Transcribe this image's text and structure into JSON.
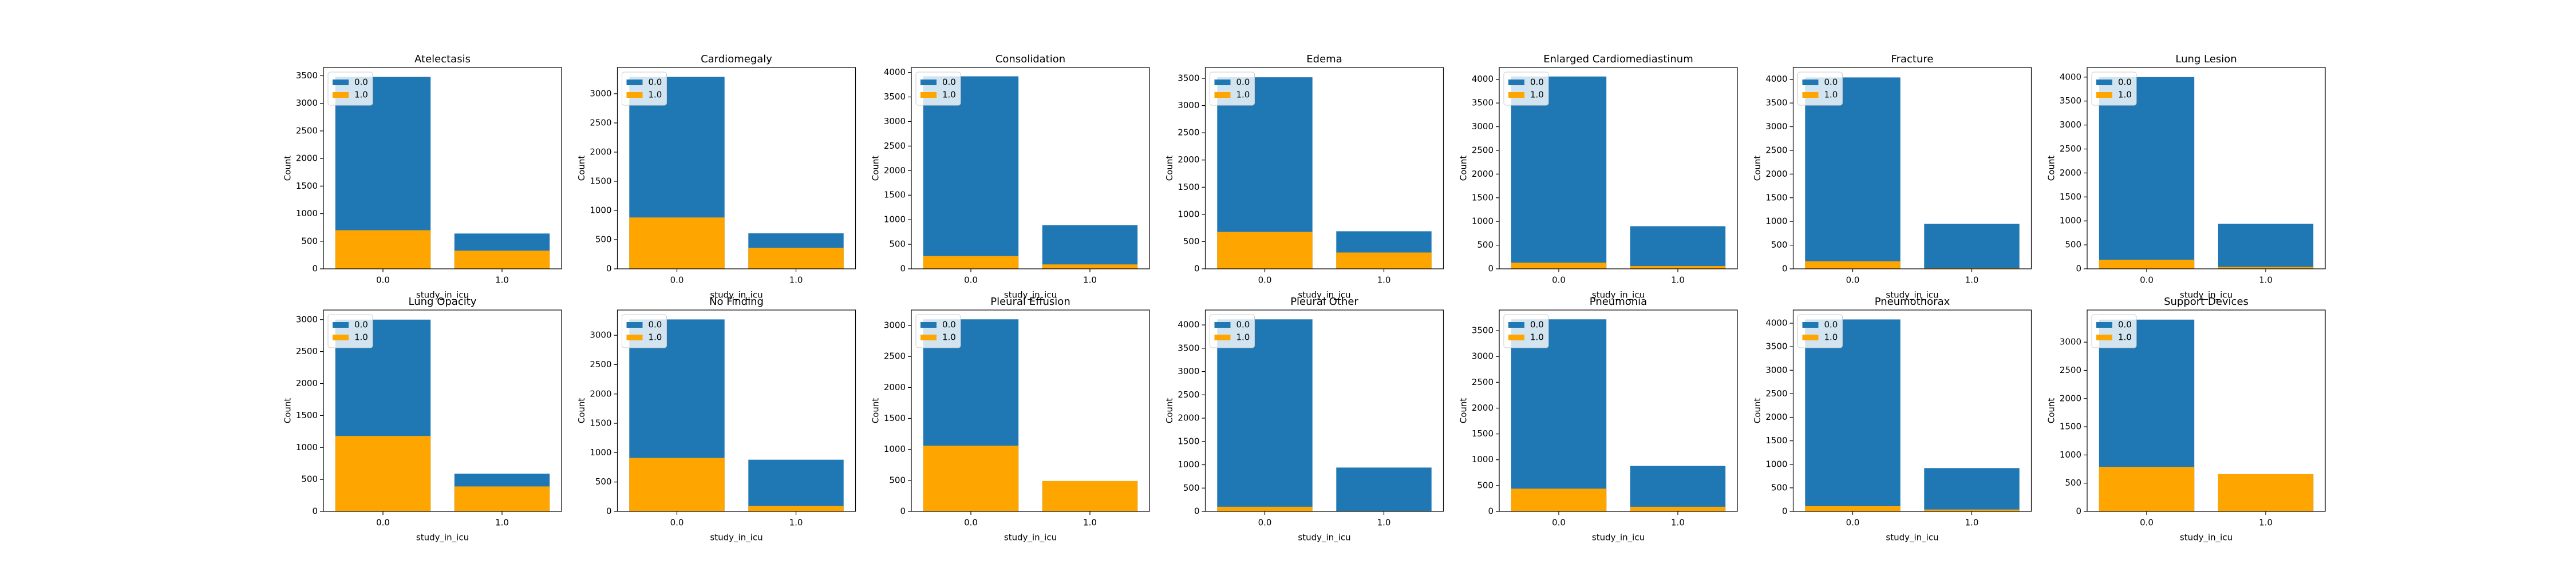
{
  "chart_data": [
    {
      "type": "bar",
      "title": "Atelectasis",
      "xlabel": "study_in_icu",
      "ylabel": "Count",
      "categories": [
        "0.0",
        "1.0"
      ],
      "series": [
        {
          "name": "0.0",
          "color": "#1f77b4",
          "values": [
            3480,
            640
          ]
        },
        {
          "name": "1.0",
          "color": "#ffa500",
          "values": [
            700,
            330
          ]
        }
      ],
      "ylim": [
        0,
        3650
      ],
      "yticks": [
        0,
        500,
        1000,
        1500,
        2000,
        2500,
        3000,
        3500
      ],
      "legend": "upper left"
    },
    {
      "type": "bar",
      "title": "Cardiomegaly",
      "xlabel": "study_in_icu",
      "ylabel": "Count",
      "categories": [
        "0.0",
        "1.0"
      ],
      "series": [
        {
          "name": "0.0",
          "color": "#1f77b4",
          "values": [
            3290,
            610
          ]
        },
        {
          "name": "1.0",
          "color": "#ffa500",
          "values": [
            880,
            360
          ]
        }
      ],
      "ylim": [
        0,
        3450
      ],
      "yticks": [
        0,
        500,
        1000,
        1500,
        2000,
        2500,
        3000
      ],
      "legend": "upper left"
    },
    {
      "type": "bar",
      "title": "Consolidation",
      "xlabel": "study_in_icu",
      "ylabel": "Count",
      "categories": [
        "0.0",
        "1.0"
      ],
      "series": [
        {
          "name": "0.0",
          "color": "#1f77b4",
          "values": [
            3920,
            890
          ]
        },
        {
          "name": "1.0",
          "color": "#ffa500",
          "values": [
            260,
            90
          ]
        }
      ],
      "ylim": [
        0,
        4100
      ],
      "yticks": [
        0,
        500,
        1000,
        1500,
        2000,
        2500,
        3000,
        3500,
        4000
      ],
      "legend": "upper left"
    },
    {
      "type": "bar",
      "title": "Edema",
      "xlabel": "study_in_icu",
      "ylabel": "Count",
      "categories": [
        "0.0",
        "1.0"
      ],
      "series": [
        {
          "name": "0.0",
          "color": "#1f77b4",
          "values": [
            3520,
            690
          ]
        },
        {
          "name": "1.0",
          "color": "#ffa500",
          "values": [
            680,
            300
          ]
        }
      ],
      "ylim": [
        0,
        3700
      ],
      "yticks": [
        0,
        500,
        1000,
        1500,
        2000,
        2500,
        3000,
        3500
      ],
      "legend": "upper left"
    },
    {
      "type": "bar",
      "title": "Enlarged Cardiomediastinum",
      "xlabel": "study_in_icu",
      "ylabel": "Count",
      "categories": [
        "0.0",
        "1.0"
      ],
      "series": [
        {
          "name": "0.0",
          "color": "#1f77b4",
          "values": [
            4060,
            900
          ]
        },
        {
          "name": "1.0",
          "color": "#ffa500",
          "values": [
            130,
            60
          ]
        }
      ],
      "ylim": [
        0,
        4250
      ],
      "yticks": [
        0,
        500,
        1000,
        1500,
        2000,
        2500,
        3000,
        3500,
        4000
      ],
      "legend": "upper left"
    },
    {
      "type": "bar",
      "title": "Fracture",
      "xlabel": "study_in_icu",
      "ylabel": "Count",
      "categories": [
        "0.0",
        "1.0"
      ],
      "series": [
        {
          "name": "0.0",
          "color": "#1f77b4",
          "values": [
            4040,
            950
          ]
        },
        {
          "name": "1.0",
          "color": "#ffa500",
          "values": [
            160,
            15
          ]
        }
      ],
      "ylim": [
        0,
        4250
      ],
      "yticks": [
        0,
        500,
        1000,
        1500,
        2000,
        2500,
        3000,
        3500,
        4000
      ],
      "legend": "upper left"
    },
    {
      "type": "bar",
      "title": "Lung Lesion",
      "xlabel": "study_in_icu",
      "ylabel": "Count",
      "categories": [
        "0.0",
        "1.0"
      ],
      "series": [
        {
          "name": "0.0",
          "color": "#1f77b4",
          "values": [
            4000,
            940
          ]
        },
        {
          "name": "1.0",
          "color": "#ffa500",
          "values": [
            190,
            40
          ]
        }
      ],
      "ylim": [
        0,
        4200
      ],
      "yticks": [
        0,
        500,
        1000,
        1500,
        2000,
        2500,
        3000,
        3500,
        4000
      ],
      "legend": "upper left"
    },
    {
      "type": "bar",
      "title": "Lung Opacity",
      "xlabel": "study_in_icu",
      "ylabel": "Count",
      "categories": [
        "0.0",
        "1.0"
      ],
      "series": [
        {
          "name": "0.0",
          "color": "#1f77b4",
          "values": [
            3000,
            590
          ]
        },
        {
          "name": "1.0",
          "color": "#ffa500",
          "values": [
            1180,
            390
          ]
        }
      ],
      "ylim": [
        0,
        3150
      ],
      "yticks": [
        0,
        500,
        1000,
        1500,
        2000,
        2500,
        3000
      ],
      "legend": "upper left"
    },
    {
      "type": "bar",
      "title": "No Finding",
      "xlabel": "study_in_icu",
      "ylabel": "Count",
      "categories": [
        "0.0",
        "1.0"
      ],
      "series": [
        {
          "name": "0.0",
          "color": "#1f77b4",
          "values": [
            3270,
            880
          ]
        },
        {
          "name": "1.0",
          "color": "#ffa500",
          "values": [
            910,
            90
          ]
        }
      ],
      "ylim": [
        0,
        3430
      ],
      "yticks": [
        0,
        500,
        1000,
        1500,
        2000,
        2500,
        3000
      ],
      "legend": "upper left"
    },
    {
      "type": "bar",
      "title": "Pleural Effusion",
      "xlabel": "study_in_icu",
      "ylabel": "Count",
      "categories": [
        "0.0",
        "1.0"
      ],
      "series": [
        {
          "name": "0.0",
          "color": "#1f77b4",
          "values": [
            3100,
            490
          ]
        },
        {
          "name": "1.0",
          "color": "#ffa500",
          "values": [
            1060,
            490
          ]
        }
      ],
      "ylim": [
        0,
        3250
      ],
      "yticks": [
        0,
        500,
        1000,
        1500,
        2000,
        2500,
        3000
      ],
      "legend": "upper left"
    },
    {
      "type": "bar",
      "title": "Pleural Other",
      "xlabel": "study_in_icu",
      "ylabel": "Count",
      "categories": [
        "0.0",
        "1.0"
      ],
      "series": [
        {
          "name": "0.0",
          "color": "#1f77b4",
          "values": [
            4120,
            940
          ]
        },
        {
          "name": "1.0",
          "color": "#ffa500",
          "values": [
            100,
            10
          ]
        }
      ],
      "ylim": [
        0,
        4320
      ],
      "yticks": [
        0,
        500,
        1000,
        1500,
        2000,
        2500,
        3000,
        3500,
        4000
      ],
      "legend": "upper left"
    },
    {
      "type": "bar",
      "title": "Pneumonia",
      "xlabel": "study_in_icu",
      "ylabel": "Count",
      "categories": [
        "0.0",
        "1.0"
      ],
      "series": [
        {
          "name": "0.0",
          "color": "#1f77b4",
          "values": [
            3720,
            880
          ]
        },
        {
          "name": "1.0",
          "color": "#ffa500",
          "values": [
            440,
            90
          ]
        }
      ],
      "ylim": [
        0,
        3900
      ],
      "yticks": [
        0,
        500,
        1000,
        1500,
        2000,
        2500,
        3000,
        3500
      ],
      "legend": "upper left"
    },
    {
      "type": "bar",
      "title": "Pneumothorax",
      "xlabel": "study_in_icu",
      "ylabel": "Count",
      "categories": [
        "0.0",
        "1.0"
      ],
      "series": [
        {
          "name": "0.0",
          "color": "#1f77b4",
          "values": [
            4080,
            920
          ]
        },
        {
          "name": "1.0",
          "color": "#ffa500",
          "values": [
            110,
            40
          ]
        }
      ],
      "ylim": [
        0,
        4280
      ],
      "yticks": [
        0,
        500,
        1000,
        1500,
        2000,
        2500,
        3000,
        3500,
        4000
      ],
      "legend": "upper left"
    },
    {
      "type": "bar",
      "title": "Support Devices",
      "xlabel": "study_in_icu",
      "ylabel": "Count",
      "categories": [
        "0.0",
        "1.0"
      ],
      "series": [
        {
          "name": "0.0",
          "color": "#1f77b4",
          "values": [
            3400,
            660
          ]
        },
        {
          "name": "1.0",
          "color": "#ffa500",
          "values": [
            790,
            660
          ]
        }
      ],
      "ylim": [
        0,
        3570
      ],
      "yticks": [
        0,
        500,
        1000,
        1500,
        2000,
        2500,
        3000
      ],
      "legend": "upper left"
    }
  ]
}
